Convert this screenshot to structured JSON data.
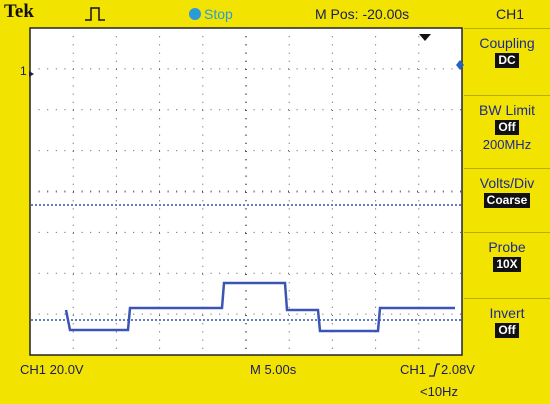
{
  "header": {
    "brand": "Tek",
    "status": "Stop",
    "position": "M Pos: -20.00s",
    "channel": "CH1"
  },
  "marker": "1",
  "menu": [
    {
      "label": "Coupling",
      "value": "DC"
    },
    {
      "label": "BW Limit",
      "value": "Off",
      "extra": "200MHz"
    },
    {
      "label": "Volts/Div",
      "value": "Coarse"
    },
    {
      "label": "Probe",
      "value": "10X"
    },
    {
      "label": "Invert",
      "value": "Off"
    }
  ],
  "footer": {
    "scale": "CH1  20.0V",
    "timebase": "M 5.00s",
    "trigger_source": "CH1",
    "trigger_level": "2.08V",
    "frequency": "<10Hz"
  }
}
